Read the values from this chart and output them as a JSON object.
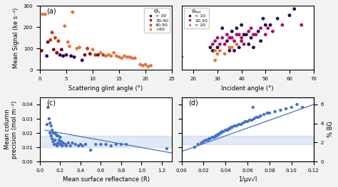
{
  "panel_a": {
    "label": "(a)",
    "xlabel": "Scattering glint angle (°)",
    "ylabel": "Mean Signal (ke s⁻¹)",
    "xlim": [
      0,
      25
    ],
    "ylim": [
      0,
      300
    ],
    "yticks": [
      0,
      100,
      200,
      300
    ],
    "legend_title": "Θᴵₐ",
    "legend_labels": [
      "< 30",
      "30-40",
      "40-50",
      ">50"
    ],
    "legend_colors": [
      "#2d004b",
      "#8b0000",
      "#cc3300",
      "#e07840"
    ],
    "scatter_x": [
      0.3,
      0.5,
      1.0,
      1.3,
      1.5,
      2.0,
      2.3,
      2.6,
      2.9,
      3.2,
      3.5,
      3.8,
      4.1,
      4.4,
      4.7,
      5.0,
      5.3,
      5.6,
      5.9,
      6.2,
      6.5,
      7.0,
      7.5,
      8.0,
      8.5,
      9.0,
      9.5,
      10.0,
      10.5,
      11.0,
      11.5,
      12.0,
      12.5,
      13.0,
      13.5,
      14.0,
      14.5,
      15.0,
      15.5,
      16.0,
      16.5,
      17.0,
      17.5,
      18.0,
      19.0,
      19.5,
      20.0,
      20.5,
      21.0
    ],
    "scatter_y": [
      90,
      260,
      260,
      65,
      130,
      140,
      175,
      95,
      150,
      80,
      135,
      70,
      95,
      65,
      205,
      70,
      130,
      110,
      65,
      270,
      60,
      100,
      105,
      45,
      70,
      100,
      75,
      95,
      70,
      70,
      80,
      70,
      65,
      70,
      65,
      80,
      65,
      60,
      55,
      65,
      60,
      60,
      55,
      55,
      25,
      20,
      25,
      15,
      20
    ],
    "scatter_cat": [
      1,
      3,
      3,
      0,
      1,
      2,
      2,
      1,
      2,
      1,
      2,
      0,
      1,
      0,
      3,
      0,
      3,
      3,
      0,
      3,
      0,
      3,
      3,
      0,
      1,
      2,
      1,
      3,
      2,
      1,
      3,
      2,
      3,
      3,
      3,
      3,
      3,
      3,
      3,
      3,
      3,
      3,
      3,
      3,
      3,
      3,
      3,
      3,
      3
    ]
  },
  "panel_b": {
    "label": "(b)",
    "xlabel": "Incident angle (°)",
    "xlim": [
      15,
      70
    ],
    "ylim": [
      0,
      10
    ],
    "legend_title": "Θₛₚₐ",
    "legend_labels": [
      "< 10",
      "10-20",
      "> 20"
    ],
    "legend_colors": [
      "#2d004b",
      "#aa1066",
      "#e07840"
    ],
    "scatter_x": [
      15,
      27,
      28,
      28,
      29,
      29,
      29,
      30,
      30,
      30,
      31,
      31,
      32,
      32,
      33,
      33,
      34,
      34,
      35,
      35,
      35,
      36,
      36,
      36,
      37,
      37,
      38,
      38,
      38,
      39,
      39,
      40,
      40,
      40,
      41,
      41,
      42,
      43,
      43,
      44,
      44,
      45,
      45,
      46,
      47,
      48,
      48,
      49,
      50,
      50,
      51,
      52,
      53,
      55,
      57,
      60,
      62,
      65
    ],
    "scatter_y": [
      2.0,
      3.5,
      3.0,
      4.0,
      3.0,
      4.5,
      1.5,
      5.0,
      3.5,
      2.5,
      4.0,
      3.0,
      5.0,
      6.5,
      4.0,
      2.5,
      4.5,
      5.5,
      3.5,
      5.0,
      3.0,
      5.0,
      6.0,
      3.5,
      4.5,
      3.0,
      5.5,
      6.5,
      4.0,
      5.5,
      3.5,
      4.5,
      7.0,
      5.0,
      5.5,
      4.0,
      5.5,
      6.0,
      4.0,
      6.5,
      5.0,
      5.5,
      3.5,
      5.5,
      6.0,
      6.5,
      4.5,
      8.0,
      5.5,
      7.0,
      6.5,
      7.0,
      6.0,
      8.0,
      7.0,
      8.5,
      9.5,
      7.0
    ],
    "scatter_cat": [
      0,
      0,
      0,
      1,
      2,
      1,
      2,
      1,
      0,
      2,
      1,
      2,
      1,
      0,
      1,
      2,
      0,
      1,
      2,
      1,
      0,
      1,
      0,
      2,
      1,
      0,
      1,
      0,
      2,
      1,
      0,
      1,
      0,
      1,
      0,
      1,
      0,
      1,
      0,
      1,
      0,
      1,
      0,
      1,
      0,
      1,
      0,
      0,
      1,
      0,
      1,
      0,
      1,
      0,
      1,
      0,
      0,
      1
    ]
  },
  "panel_c": {
    "label": "(c)",
    "xlabel": "Mean surface reflectance (R)",
    "ylabel": "Mean column\nprecision (mol m⁻²)",
    "xlim": [
      0.0,
      1.3
    ],
    "ylim": [
      0.0,
      0.045
    ],
    "yticks": [
      0.0,
      0.01,
      0.02,
      0.03,
      0.04
    ],
    "scatter_x": [
      0.07,
      0.08,
      0.09,
      0.1,
      0.1,
      0.11,
      0.11,
      0.12,
      0.12,
      0.13,
      0.13,
      0.14,
      0.14,
      0.15,
      0.15,
      0.16,
      0.16,
      0.17,
      0.17,
      0.18,
      0.18,
      0.19,
      0.2,
      0.2,
      0.21,
      0.22,
      0.22,
      0.23,
      0.25,
      0.26,
      0.28,
      0.3,
      0.32,
      0.35,
      0.38,
      0.4,
      0.42,
      0.45,
      0.5,
      0.55,
      0.6,
      0.65,
      0.7,
      0.75,
      0.8,
      0.85,
      1.25
    ],
    "scatter_y": [
      0.026,
      0.038,
      0.03,
      0.027,
      0.02,
      0.025,
      0.018,
      0.022,
      0.016,
      0.02,
      0.014,
      0.02,
      0.012,
      0.02,
      0.015,
      0.019,
      0.012,
      0.018,
      0.011,
      0.018,
      0.013,
      0.015,
      0.017,
      0.012,
      0.014,
      0.013,
      0.011,
      0.013,
      0.012,
      0.011,
      0.013,
      0.011,
      0.013,
      0.012,
      0.011,
      0.012,
      0.011,
      0.012,
      0.008,
      0.012,
      0.012,
      0.012,
      0.011,
      0.012,
      0.012,
      0.012,
      0.009
    ],
    "fit_x": [
      0.05,
      1.3
    ],
    "fit_y": [
      0.022,
      0.006
    ],
    "band_y_lo": 0.01,
    "band_y_hi": 0.018,
    "scatter_color": "#4472c4",
    "fit_color": "#4472c4",
    "band_color": "#aabfe8"
  },
  "panel_d": {
    "label": "(d)",
    "xlabel": "1/μv√I",
    "ylabel2": "% BG",
    "xlim": [
      0.0,
      0.12
    ],
    "ylim": [
      0.0,
      0.045
    ],
    "yticks": [
      0.0,
      0.01,
      0.02,
      0.03,
      0.04
    ],
    "scatter_x": [
      0.012,
      0.015,
      0.018,
      0.02,
      0.022,
      0.024,
      0.025,
      0.026,
      0.028,
      0.03,
      0.031,
      0.032,
      0.033,
      0.034,
      0.035,
      0.036,
      0.037,
      0.038,
      0.04,
      0.041,
      0.042,
      0.043,
      0.044,
      0.045,
      0.046,
      0.048,
      0.05,
      0.052,
      0.054,
      0.056,
      0.058,
      0.06,
      0.062,
      0.064,
      0.065,
      0.066,
      0.068,
      0.07,
      0.072,
      0.075,
      0.078,
      0.08,
      0.085,
      0.09,
      0.095,
      0.1,
      0.105,
      0.11
    ],
    "scatter_y": [
      0.01,
      0.012,
      0.013,
      0.014,
      0.015,
      0.015,
      0.016,
      0.016,
      0.017,
      0.017,
      0.018,
      0.018,
      0.019,
      0.019,
      0.02,
      0.02,
      0.021,
      0.021,
      0.022,
      0.022,
      0.022,
      0.023,
      0.023,
      0.024,
      0.024,
      0.025,
      0.025,
      0.026,
      0.026,
      0.027,
      0.028,
      0.028,
      0.029,
      0.029,
      0.038,
      0.03,
      0.031,
      0.031,
      0.032,
      0.033,
      0.034,
      0.034,
      0.035,
      0.036,
      0.037,
      0.038,
      0.04,
      0.038
    ],
    "fit_x": [
      0.0,
      0.12
    ],
    "fit_y": [
      0.007,
      0.04
    ],
    "band_y_lo": 0.012,
    "band_y_hi": 0.018,
    "scatter_color": "#4472c4",
    "fit_color": "#4472c4",
    "band_color": "#aabfe8",
    "yticks2": [
      0,
      2,
      4,
      6
    ],
    "ylim2": [
      0,
      6.75
    ]
  },
  "colors": {
    "cat_a": [
      "#2d004b",
      "#8b0000",
      "#cc3300",
      "#e07840"
    ],
    "cat_b": [
      "#2d004b",
      "#aa1066",
      "#e07840"
    ]
  },
  "fig_bg": "#f2f2f2"
}
